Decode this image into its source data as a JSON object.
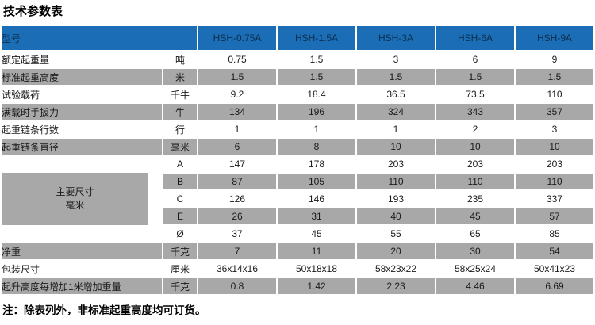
{
  "title": "技术参数表",
  "note": "注：除表列外，非标准起重高度均可订货。",
  "colors": {
    "header_bg": "#1b6db5",
    "header_text": "#0c2e4e",
    "shaded_row_bg": "#a8a8a8",
    "row_bg": "#ffffff"
  },
  "table": {
    "model_header_label": "型号",
    "models": [
      "HSH-0.75A",
      "HSH-1.5A",
      "HSH-3A",
      "HSH-6A",
      "HSH-9A"
    ],
    "rows": [
      {
        "label": "额定起重量",
        "unit": "吨",
        "values": [
          "0.75",
          "1.5",
          "3",
          "6",
          "9"
        ],
        "shaded": false
      },
      {
        "label": "标准起重高度",
        "unit": "米",
        "values": [
          "1.5",
          "1.5",
          "1.5",
          "1.5",
          "1.5"
        ],
        "shaded": true
      },
      {
        "label": "试验载荷",
        "unit": "千牛",
        "values": [
          "9.2",
          "18.4",
          "36.5",
          "73.5",
          "110"
        ],
        "shaded": false
      },
      {
        "label": "满载时手扳力",
        "unit": "牛",
        "values": [
          "134",
          "196",
          "324",
          "343",
          "357"
        ],
        "shaded": true
      },
      {
        "label": "起重链条行数",
        "unit": "行",
        "values": [
          "1",
          "1",
          "1",
          "2",
          "3"
        ],
        "shaded": false
      },
      {
        "label": "起重链条直径",
        "unit": "毫米",
        "values": [
          "6",
          "8",
          "10",
          "10",
          "10"
        ],
        "shaded": true
      }
    ],
    "dimension_group": {
      "label_line1": "主要尺寸",
      "label_line2": "毫米",
      "rows": [
        {
          "sub": "A",
          "values": [
            "147",
            "178",
            "203",
            "203",
            "203"
          ],
          "shaded": false
        },
        {
          "sub": "B",
          "values": [
            "87",
            "105",
            "110",
            "110",
            "110"
          ],
          "shaded": true
        },
        {
          "sub": "C",
          "values": [
            "126",
            "146",
            "193",
            "235",
            "337"
          ],
          "shaded": false
        },
        {
          "sub": "E",
          "values": [
            "26",
            "31",
            "40",
            "45",
            "57"
          ],
          "shaded": true
        },
        {
          "sub": "Ø",
          "values": [
            "37",
            "45",
            "55",
            "65",
            "85"
          ],
          "shaded": false
        }
      ]
    },
    "bottom_rows": [
      {
        "label": "净重",
        "unit": "千克",
        "values": [
          "7",
          "11",
          "20",
          "30",
          "54"
        ],
        "shaded": true
      },
      {
        "label": "包装尺寸",
        "unit": "厘米",
        "values": [
          "36x14x16",
          "50x18x18",
          "58x23x22",
          "58x25x24",
          "50x41x23"
        ],
        "shaded": false
      },
      {
        "label": "起升高度每增加1米增加重量",
        "unit": "千克",
        "values": [
          "0.8",
          "1.42",
          "2.23",
          "4.46",
          "6.69"
        ],
        "shaded": true
      }
    ]
  }
}
